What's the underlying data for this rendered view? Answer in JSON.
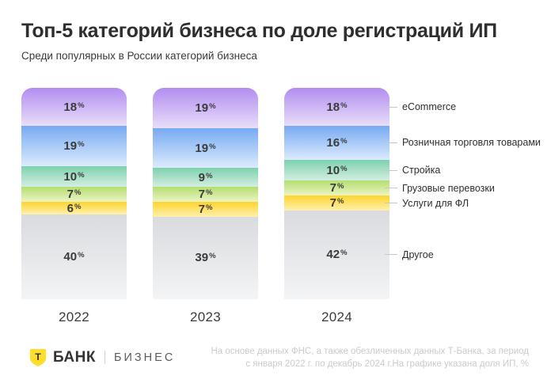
{
  "header": {
    "title": "Топ-5 категорий бизнеса по доле регистраций ИП",
    "subtitle": "Среди популярных в России категорий бизнеса"
  },
  "chart_data": {
    "type": "bar",
    "variant": "stacked-percent-columns",
    "unit": "%",
    "ylim": [
      0,
      100
    ],
    "value_labels": "inside",
    "legend_position": "right",
    "categories": [
      "2022",
      "2023",
      "2024"
    ],
    "series": [
      {
        "name": "eCommerce",
        "values": [
          18,
          19,
          18
        ],
        "color_top": "#b28df0",
        "color_bottom": "#e8def9"
      },
      {
        "name": "Розничная торговля товарами",
        "values": [
          19,
          19,
          16
        ],
        "color_top": "#77aaf2",
        "color_bottom": "#dcebfd"
      },
      {
        "name": "Стройка",
        "values": [
          10,
          9,
          10
        ],
        "color_top": "#7dd1af",
        "color_bottom": "#d3eee0"
      },
      {
        "name": "Грузовые перевозки",
        "values": [
          7,
          7,
          7
        ],
        "color_top": "#b5dd70",
        "color_bottom": "#ebf5c3"
      },
      {
        "name": "Услуги для ФЛ",
        "values": [
          6,
          7,
          7
        ],
        "color_top": "#ffd42e",
        "color_bottom": "#fdf0ad"
      },
      {
        "name": "Другое",
        "values": [
          40,
          39,
          42
        ],
        "color_top": "#d9dbdf",
        "color_bottom": "#f3f4f5"
      }
    ]
  },
  "footer": {
    "logo": {
      "letter": "Т",
      "bank": "БАНК",
      "product": "БИЗНЕС",
      "shield_color": "#ffdd2d"
    },
    "note_line1": "На основе данных ФНС, а также обезличенных данных Т-Банка, за период",
    "note_line2": "с января 2022 г. по декабрь 2024 г.На графике указана доля ИП, %"
  }
}
